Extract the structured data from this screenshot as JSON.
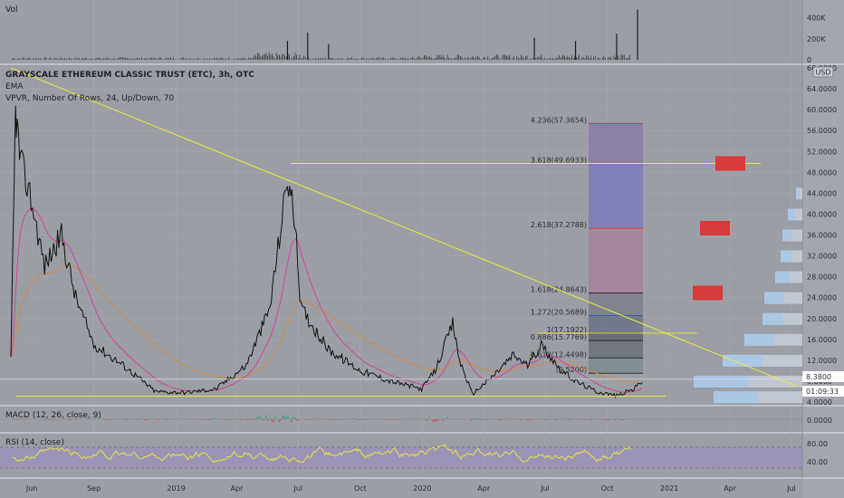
{
  "chart_data": [
    {
      "type": "bar",
      "panel": "volume",
      "title": "Vol",
      "y_ticks": [
        "400K",
        "200K",
        "0"
      ],
      "spikes": [
        {
          "x": "2019-06",
          "value": 180000
        },
        {
          "x": "2019-07",
          "value": 260000
        },
        {
          "x": "2019-08",
          "value": 150000
        },
        {
          "x": "2020-06",
          "value": 210000
        },
        {
          "x": "2020-08",
          "value": 180000
        },
        {
          "x": "2020-10",
          "value": 250000
        },
        {
          "x": "2020-11",
          "value": 480000
        }
      ]
    },
    {
      "type": "line",
      "panel": "price",
      "title": "GRAYSCALE ETHEREUM CLASSIC TRUST (ETC), 3h, OTC",
      "indicators": [
        "EMA",
        "VPVR, Number Of Rows, 24, Up/Down, 70"
      ],
      "currency": "USD",
      "y_ticks": [
        "68.0000",
        "64.0000",
        "60.0000",
        "56.0000",
        "52.0000",
        "48.0000",
        "44.0000",
        "40.0000",
        "36.0000",
        "32.0000",
        "28.0000",
        "24.0000",
        "20.0000",
        "16.0000",
        "12.0000",
        "8.0000",
        "4.0000"
      ],
      "ylim": [
        4,
        68
      ],
      "x_ticks": [
        "Jun",
        "Sep",
        "2019",
        "Apr",
        "Jul",
        "Oct",
        "2020",
        "Apr",
        "Jul",
        "Oct",
        "2021",
        "Apr",
        "Jul"
      ],
      "series": [
        {
          "values": [
            [
              "2018-05-01",
              12
            ],
            [
              "2018-05-08",
              60
            ],
            [
              "2018-05-15",
              50
            ],
            [
              "2018-05-29",
              44
            ],
            [
              "2018-06-20",
              30
            ],
            [
              "2018-07-15",
              36
            ],
            [
              "2018-08-05",
              24
            ],
            [
              "2018-09-01",
              15
            ],
            [
              "2018-10-15",
              11
            ],
            [
              "2018-12-01",
              6
            ],
            [
              "2019-01-15",
              5.8
            ],
            [
              "2019-03-01",
              6.5
            ],
            [
              "2019-04-15",
              11
            ],
            [
              "2019-05-20",
              22
            ],
            [
              "2019-06-15",
              47
            ],
            [
              "2019-06-25",
              40
            ],
            [
              "2019-07-05",
              22
            ],
            [
              "2019-08-15",
              14
            ],
            [
              "2019-10-01",
              10
            ],
            [
              "2019-11-15",
              8
            ],
            [
              "2019-12-31",
              6.5
            ],
            [
              "2020-01-20",
              10
            ],
            [
              "2020-02-15",
              19
            ],
            [
              "2020-02-25",
              12
            ],
            [
              "2020-03-15",
              5.5
            ],
            [
              "2020-04-15",
              9
            ],
            [
              "2020-05-15",
              13
            ],
            [
              "2020-06-05",
              11
            ],
            [
              "2020-06-25",
              15
            ],
            [
              "2020-07-25",
              10
            ],
            [
              "2020-08-15",
              8
            ],
            [
              "2020-09-15",
              6
            ],
            [
              "2020-10-15",
              5.2
            ],
            [
              "2020-11-10",
              6.5
            ],
            [
              "2020-11-24",
              8.38
            ]
          ]
        }
      ],
      "last_price": "8.3800",
      "countdown": "01:09:33",
      "fib_levels": [
        {
          "label": "4.236(57.3654)",
          "color": "#c0306a"
        },
        {
          "label": "3.618(49.6933)",
          "color": "#c0306a"
        },
        {
          "label": "2.618(37.2788)",
          "color": "#d33a3a"
        },
        {
          "label": "1.618(24.8643)",
          "color": "#1e1e1e"
        },
        {
          "label": "1.272(20.5689)",
          "color": "#2b5bb0"
        },
        {
          "label": "1(17.1922)",
          "color": "#1e1e1e"
        },
        {
          "label": "0.886(15.7769)",
          "color": "#1e1e1e"
        },
        {
          "label": "0.618(12.4498)",
          "color": "#1e1e1e"
        },
        {
          "label": "(9.5200)",
          "color": "#1e1e1e"
        }
      ]
    },
    {
      "type": "line",
      "panel": "macd",
      "title": "MACD (12, 26, close, 9)",
      "y_ticks": [
        "0.0000"
      ]
    },
    {
      "type": "line",
      "panel": "rsi",
      "title": "RSI (14, close)",
      "y_ticks": [
        "80.00",
        "40.00"
      ],
      "ylim": [
        0,
        100
      ]
    }
  ],
  "colors": {
    "background": "#9b9ea5",
    "price_line": "#111111",
    "ema_pink": "#d83a9a",
    "ema_orange": "#d68a3a",
    "trendline": "#f0e83a",
    "rsi_line": "#f0e83a",
    "rsi_band": "#9a8cc4",
    "target_box": "#d83b3b"
  }
}
